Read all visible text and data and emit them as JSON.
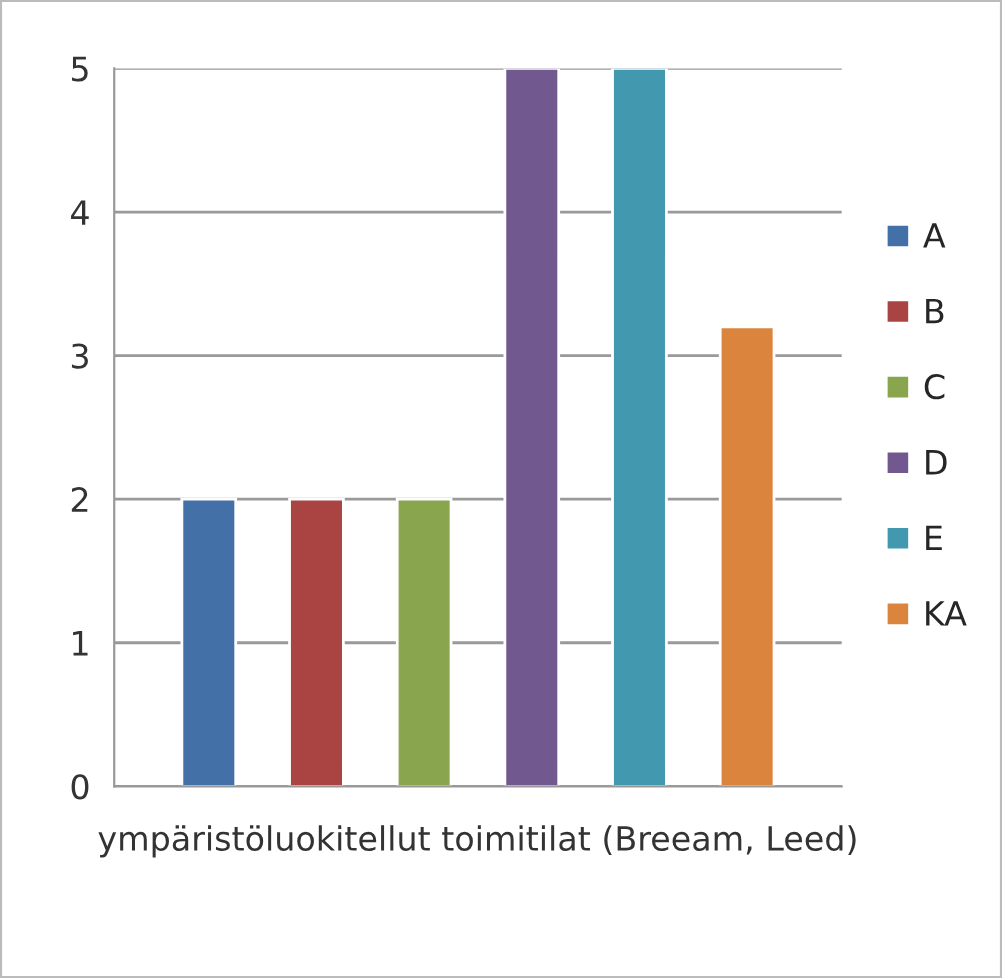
{
  "chart_data": {
    "type": "bar",
    "categories": [
      "ympäristöluokitellut toimitilat (Breeam, Leed)"
    ],
    "series": [
      {
        "name": "A",
        "color": "#4470a8",
        "values": [
          2
        ]
      },
      {
        "name": "B",
        "color": "#a94442",
        "values": [
          2
        ]
      },
      {
        "name": "C",
        "color": "#89a54e",
        "values": [
          2
        ]
      },
      {
        "name": "D",
        "color": "#71588f",
        "values": [
          5
        ]
      },
      {
        "name": "E",
        "color": "#4198af",
        "values": [
          5
        ]
      },
      {
        "name": "KA",
        "color": "#db843d",
        "values": [
          3.2
        ]
      }
    ],
    "ylim": [
      0,
      5
    ],
    "yticks": [
      0,
      1,
      2,
      3,
      4,
      5
    ],
    "grid": "y",
    "legend": "right"
  }
}
